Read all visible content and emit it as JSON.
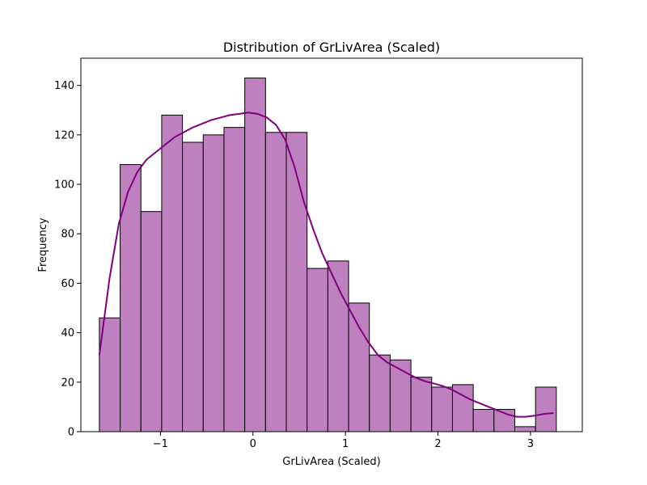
{
  "chart_data": {
    "type": "bar",
    "title": "Distribution of GrLivArea (Scaled)",
    "xlabel": "GrLivArea (Scaled)",
    "ylabel": "Frequency",
    "xlim": [
      -1.86,
      3.56
    ],
    "ylim": [
      0,
      151
    ],
    "xticks": [
      -1,
      0,
      1,
      2,
      3
    ],
    "xtick_labels": [
      "−1",
      "0",
      "1",
      "2",
      "3"
    ],
    "yticks": [
      0,
      20,
      40,
      60,
      80,
      100,
      120,
      140
    ],
    "ytick_labels": [
      "0",
      "20",
      "40",
      "60",
      "80",
      "100",
      "120",
      "140"
    ],
    "bin_start": -1.66,
    "bin_width": 0.2245,
    "values": [
      46,
      108,
      89,
      128,
      117,
      120,
      123,
      143,
      121,
      121,
      66,
      69,
      52,
      31,
      29,
      22,
      18,
      19,
      9,
      9,
      2,
      18
    ],
    "bar_color": "#bf80bf",
    "edge_color": "#000000",
    "kde_color": "#800080",
    "kde": {
      "x": [
        -1.66,
        -1.55,
        -1.45,
        -1.35,
        -1.25,
        -1.15,
        -1.05,
        -0.95,
        -0.85,
        -0.75,
        -0.65,
        -0.55,
        -0.45,
        -0.35,
        -0.25,
        -0.15,
        -0.05,
        0.05,
        0.15,
        0.25,
        0.35,
        0.45,
        0.55,
        0.65,
        0.75,
        0.85,
        0.95,
        1.05,
        1.15,
        1.25,
        1.35,
        1.45,
        1.55,
        1.65,
        1.75,
        1.85,
        1.95,
        2.05,
        2.15,
        2.25,
        2.35,
        2.45,
        2.55,
        2.65,
        2.75,
        2.85,
        2.95,
        3.05,
        3.15,
        3.25
      ],
      "y": [
        31,
        62,
        84,
        97,
        105,
        110,
        113,
        116,
        119,
        121,
        123,
        124.5,
        126,
        127,
        128,
        128.5,
        129,
        128.5,
        127,
        124,
        118,
        107,
        93,
        82,
        72,
        64,
        56,
        49,
        42,
        36,
        31,
        28,
        26,
        24,
        22,
        20.5,
        19.5,
        18.5,
        17,
        15,
        13,
        11.5,
        10,
        8.5,
        7,
        6,
        6,
        6.5,
        7.2,
        7.5
      ]
    }
  }
}
